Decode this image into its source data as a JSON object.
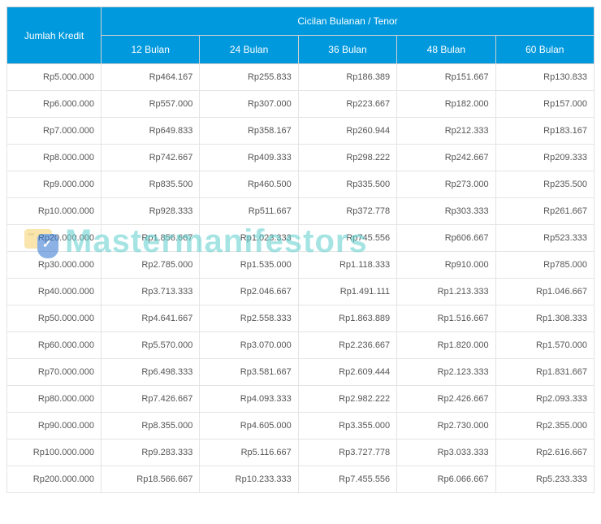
{
  "table": {
    "header_bg": "#0099dd",
    "header_fg": "#ffffff",
    "border_color": "#e4e4e4",
    "cell_fontsize": 11,
    "header_fontsize": 12,
    "credit_header": "Jumlah Kredit",
    "tenor_header": "Cicilan Bulanan / Tenor",
    "tenor_columns": [
      "12 Bulan",
      "24 Bulan",
      "36 Bulan",
      "48 Bulan",
      "60 Bulan"
    ],
    "rows": [
      {
        "credit": "Rp5.000.000",
        "c": [
          "Rp464.167",
          "Rp255.833",
          "Rp186.389",
          "Rp151.667",
          "Rp130.833"
        ]
      },
      {
        "credit": "Rp6.000.000",
        "c": [
          "Rp557.000",
          "Rp307.000",
          "Rp223.667",
          "Rp182.000",
          "Rp157.000"
        ]
      },
      {
        "credit": "Rp7.000.000",
        "c": [
          "Rp649.833",
          "Rp358.167",
          "Rp260.944",
          "Rp212.333",
          "Rp183.167"
        ]
      },
      {
        "credit": "Rp8.000.000",
        "c": [
          "Rp742.667",
          "Rp409.333",
          "Rp298.222",
          "Rp242.667",
          "Rp209.333"
        ]
      },
      {
        "credit": "Rp9.000.000",
        "c": [
          "Rp835.500",
          "Rp460.500",
          "Rp335.500",
          "Rp273.000",
          "Rp235.500"
        ]
      },
      {
        "credit": "Rp10.000.000",
        "c": [
          "Rp928.333",
          "Rp511.667",
          "Rp372.778",
          "Rp303.333",
          "Rp261.667"
        ]
      },
      {
        "credit": "Rp20.000.000",
        "c": [
          "Rp1.856.667",
          "Rp1.023.333",
          "Rp745.556",
          "Rp606.667",
          "Rp523.333"
        ]
      },
      {
        "credit": "Rp30.000.000",
        "c": [
          "Rp2.785.000",
          "Rp1.535.000",
          "Rp1.118.333",
          "Rp910.000",
          "Rp785.000"
        ]
      },
      {
        "credit": "Rp40.000.000",
        "c": [
          "Rp3.713.333",
          "Rp2.046.667",
          "Rp1.491.111",
          "Rp1.213.333",
          "Rp1.046.667"
        ]
      },
      {
        "credit": "Rp50.000.000",
        "c": [
          "Rp4.641.667",
          "Rp2.558.333",
          "Rp1.863.889",
          "Rp1.516.667",
          "Rp1.308.333"
        ]
      },
      {
        "credit": "Rp60.000.000",
        "c": [
          "Rp5.570.000",
          "Rp3.070.000",
          "Rp2.236.667",
          "Rp1.820.000",
          "Rp1.570.000"
        ]
      },
      {
        "credit": "Rp70.000.000",
        "c": [
          "Rp6.498.333",
          "Rp3.581.667",
          "Rp2.609.444",
          "Rp2.123.333",
          "Rp1.831.667"
        ]
      },
      {
        "credit": "Rp80.000.000",
        "c": [
          "Rp7.426.667",
          "Rp4.093.333",
          "Rp2.982.222",
          "Rp2.426.667",
          "Rp2.093.333"
        ]
      },
      {
        "credit": "Rp90.000.000",
        "c": [
          "Rp8.355.000",
          "Rp4.605.000",
          "Rp3.355.000",
          "Rp2.730.000",
          "Rp2.355.000"
        ]
      },
      {
        "credit": "Rp100.000.000",
        "c": [
          "Rp9.283.333",
          "Rp5.116.667",
          "Rp3.727.778",
          "Rp3.033.333",
          "Rp2.616.667"
        ]
      },
      {
        "credit": "Rp200.000.000",
        "c": [
          "Rp18.566.667",
          "Rp10.233.333",
          "Rp7.455.556",
          "Rp6.066.667",
          "Rp5.233.333"
        ]
      }
    ]
  },
  "watermark": {
    "text": "Mastermanifestors",
    "color": "#5fcfcf",
    "fontsize": 40
  }
}
